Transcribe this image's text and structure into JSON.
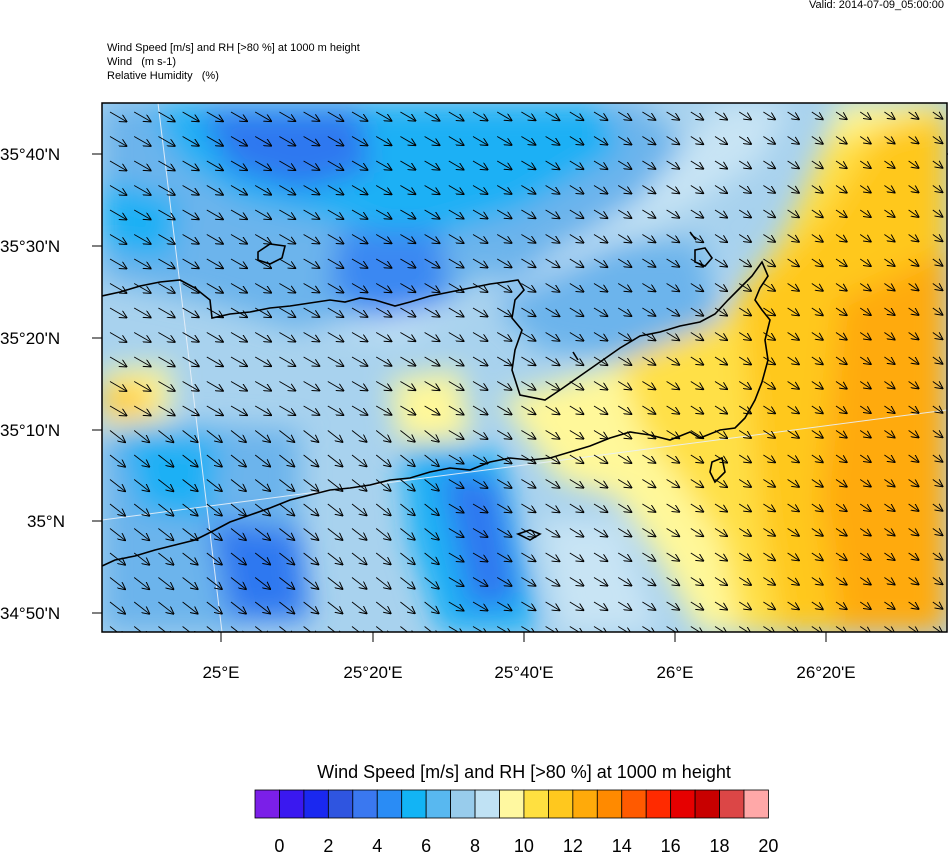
{
  "valid_text": "Valid: 2014-07-09_05:00:00",
  "titles": {
    "line1": "Wind Speed [m/s] and RH [>80 %] at 1000 m height",
    "line2": "Wind   (m s-1)",
    "line3": "Relative Humidity   (%)"
  },
  "axes": {
    "lat_ticks": [
      "35°40'N",
      "35°30'N",
      "35°20'N",
      "35°10'N",
      "35°N",
      "34°50'N"
    ],
    "lon_ticks": [
      "25°E",
      "25°20'E",
      "25°40'E",
      "26°E",
      "26°20'E"
    ]
  },
  "colorbar": {
    "title": "Wind Speed [m/s] and RH [>80 %] at 1000 m height",
    "labels": [
      "0",
      "2",
      "4",
      "6",
      "8",
      "10",
      "12",
      "14",
      "16",
      "18",
      "20"
    ],
    "colors": [
      "#7b1fe8",
      "#3a18f0",
      "#1a28f0",
      "#2f55e0",
      "#3a78f0",
      "#2a8cf5",
      "#12b4f5",
      "#58b8f0",
      "#98ccec",
      "#c0e2f4",
      "#fff8a0",
      "#ffe040",
      "#ffc81e",
      "#ffaa0a",
      "#ff8a00",
      "#ff5a00",
      "#ff2a00",
      "#e60000",
      "#c80000",
      "#dc4646",
      "#ffa8a8"
    ]
  },
  "field_colors": {
    "dark_blue": "#2f78f0",
    "medium_blue": "#1ab0f5",
    "light_blue": "#6cb4ec",
    "pale_blue": "#a8d2ee",
    "very_pale_blue": "#c8e4f4",
    "pale_yellow": "#fff89a",
    "yellow": "#ffe046",
    "gold": "#ffc81e",
    "orange": "#ffaa0a"
  },
  "wind_direction": "north-west, turning northerly in the east"
}
